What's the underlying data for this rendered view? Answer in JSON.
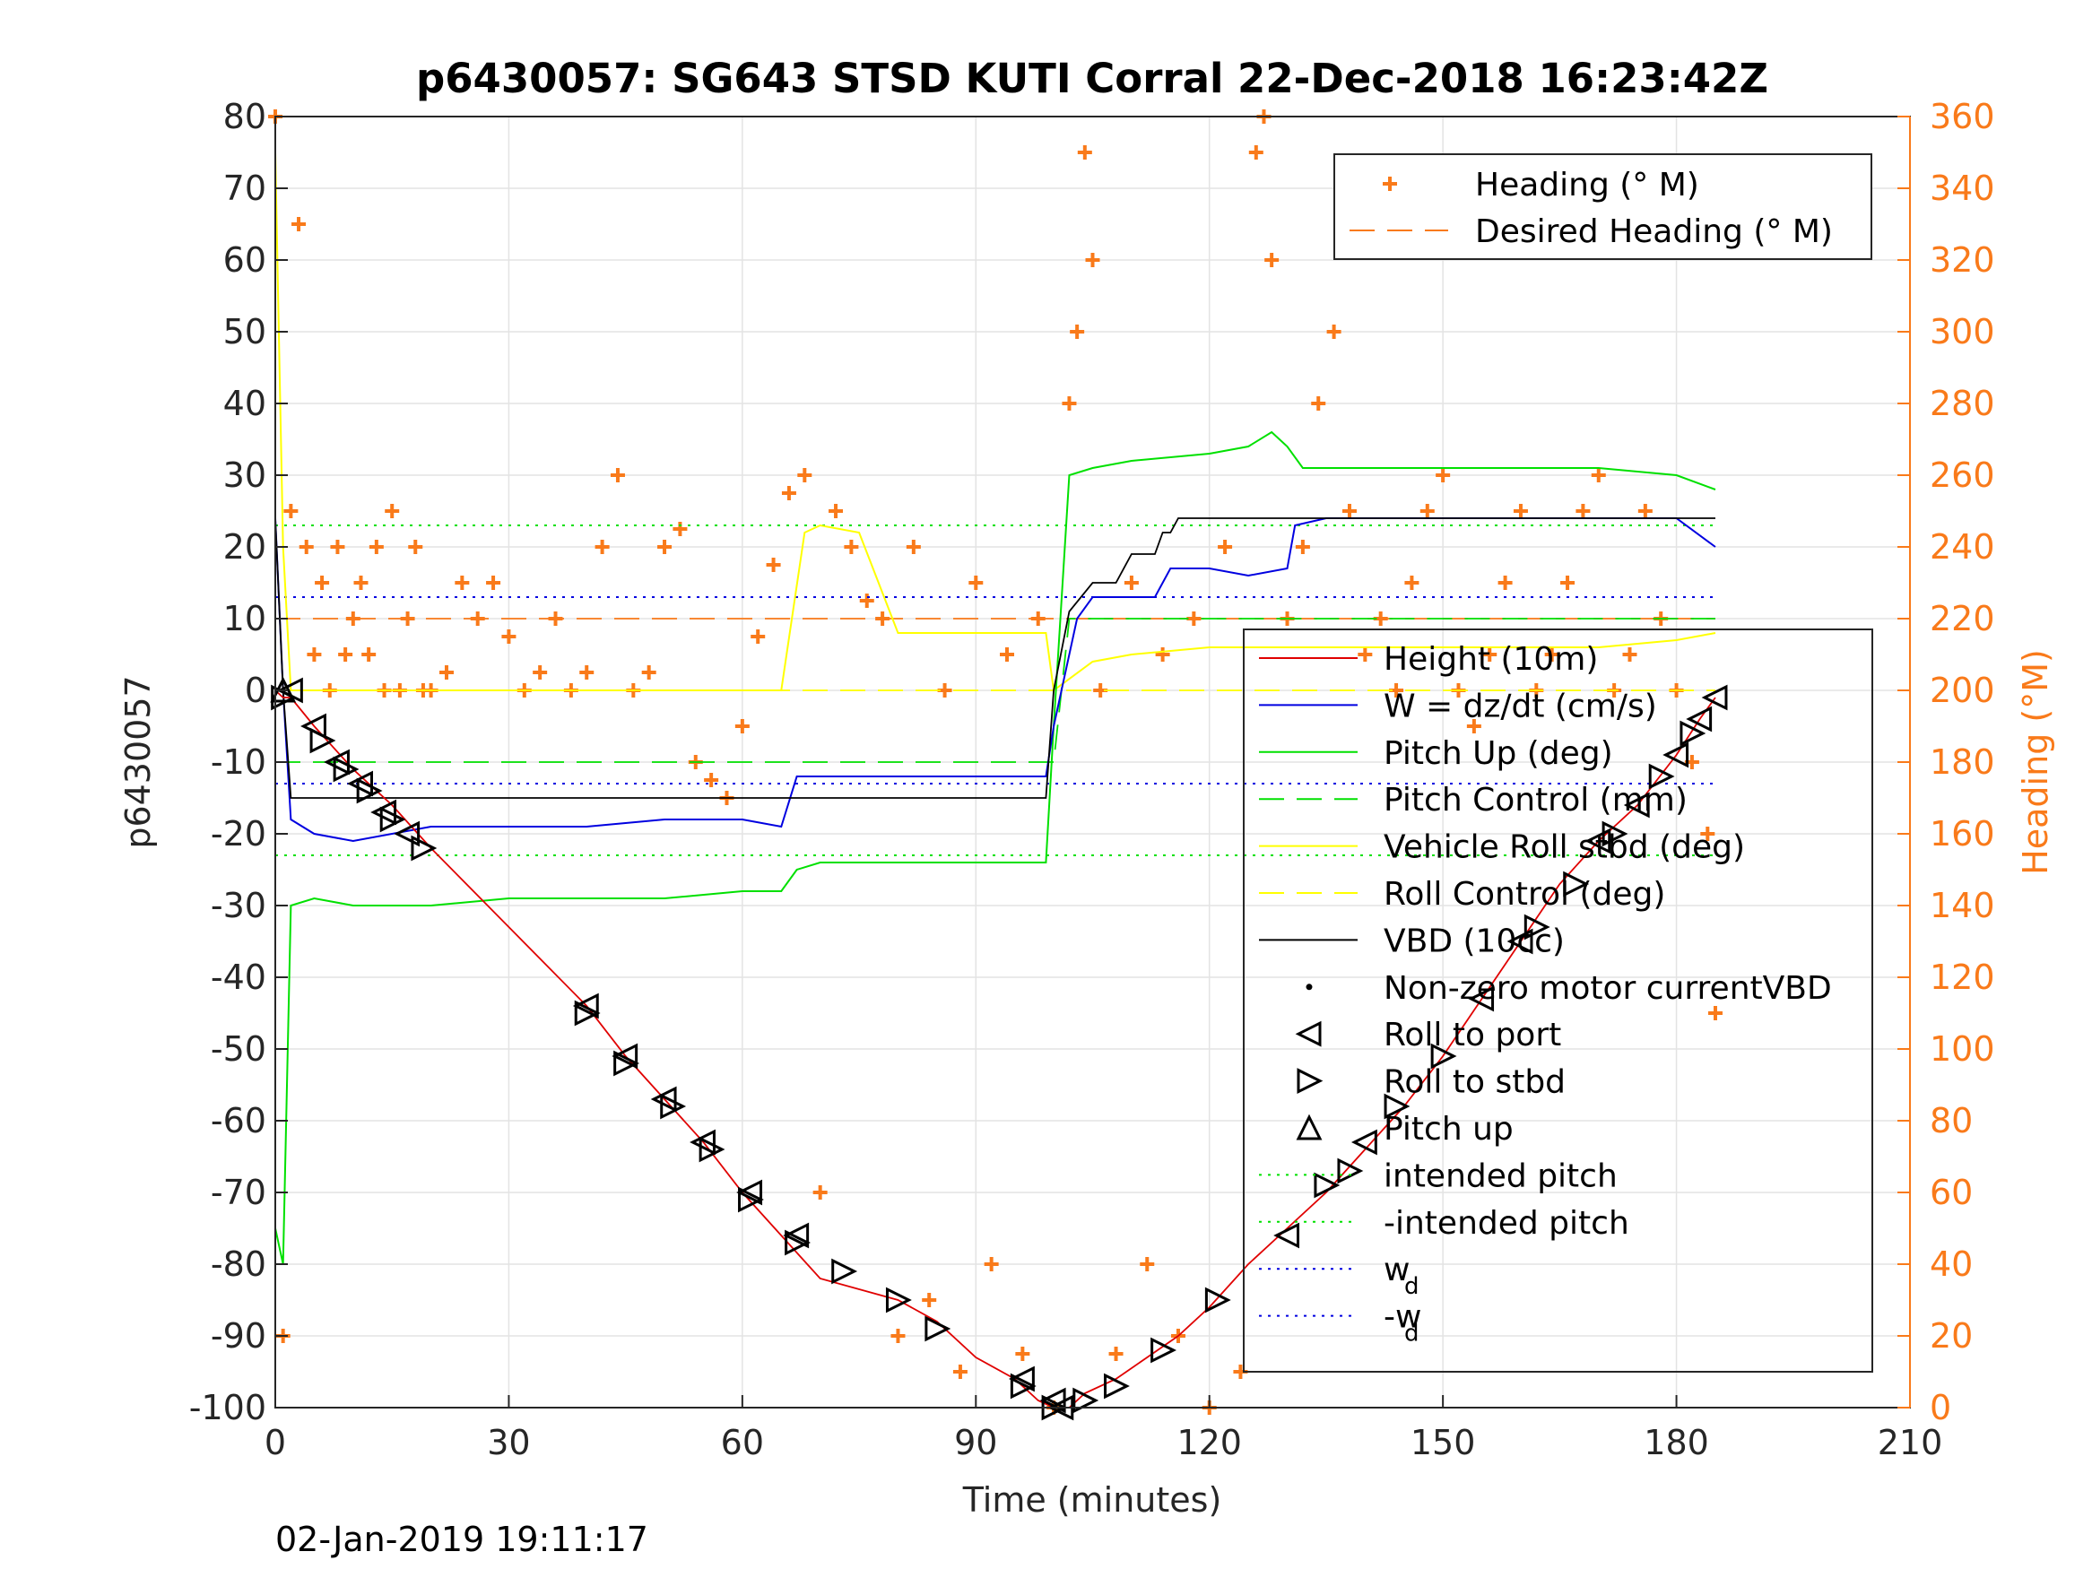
{
  "chart_data": {
    "type": "line",
    "title": "p6430057: SG643 STSD KUTI Corral 22-Dec-2018 16:23:42Z",
    "xlabel": "Time (minutes)",
    "ylabel": "p6430057",
    "ylabel_right": "Heading (°M)",
    "footer": "02-Jan-2019 19:11:17",
    "xlim": [
      0,
      210
    ],
    "ylim": [
      -100,
      80
    ],
    "ylim_right": [
      0,
      360
    ],
    "xticks": [
      "0",
      "30",
      "60",
      "90",
      "120",
      "150",
      "180",
      "210"
    ],
    "yticks": [
      "80",
      "70",
      "60",
      "50",
      "40",
      "30",
      "20",
      "10",
      "0",
      "-10",
      "-20",
      "-30",
      "-40",
      "-50",
      "-60",
      "-70",
      "-80",
      "-90",
      "-100"
    ],
    "yticks_right": [
      "360",
      "340",
      "320",
      "300",
      "280",
      "260",
      "240",
      "220",
      "200",
      "180",
      "160",
      "140",
      "120",
      "100",
      "80",
      "60",
      "40",
      "20",
      "0"
    ],
    "grid": true,
    "colors": {
      "heading": "#f97a1a",
      "height": "#e00000",
      "w": "#0000e0",
      "pitch": "#00e000",
      "roll": "#ffff00",
      "vbd": "#000000",
      "markers": "#000000"
    },
    "legend_top": {
      "placement": "top-right",
      "entries": [
        "Heading (° M)",
        "Desired Heading (° M)"
      ]
    },
    "legend_main": {
      "placement": "right",
      "entries": [
        "Height (10m)",
        "W = dz/dt (cm/s)",
        "Pitch Up (deg)",
        "Pitch Control (mm)",
        "Vehicle Roll stbd (deg)",
        "Roll Control (deg)",
        "VBD (10cc)",
        "Non-zero motor currentVBD",
        "Roll to port",
        "Roll to stbd",
        "Pitch up",
        "intended pitch",
        "-intended pitch",
        "w",
        "-w"
      ],
      "subscript": "d"
    },
    "series": [
      {
        "name": "Height (10m)",
        "axis": "left",
        "x": [
          0,
          1,
          2,
          5,
          10,
          15,
          20,
          40,
          45,
          50,
          55,
          60,
          65,
          70,
          80,
          85,
          90,
          95,
          98,
          100,
          102,
          104,
          108,
          112,
          116,
          120,
          125,
          130,
          135,
          140,
          145,
          150,
          155,
          160,
          165,
          170,
          175,
          180,
          183,
          185
        ],
        "y": [
          0,
          -1,
          -1,
          -5,
          -11,
          -16,
          -22,
          -44,
          -51,
          -57,
          -63,
          -70,
          -76,
          -82,
          -85,
          -88,
          -93,
          -96,
          -99,
          -100,
          -100,
          -98,
          -96,
          -93,
          -90,
          -86,
          -80,
          -75,
          -70,
          -64,
          -58,
          -51,
          -43,
          -35,
          -27,
          -21,
          -16,
          -9,
          -4,
          -1
        ]
      },
      {
        "name": "W = dz/dt (cm/s)",
        "axis": "left",
        "x": [
          0,
          1,
          2,
          5,
          10,
          20,
          30,
          40,
          50,
          60,
          65,
          67,
          70,
          80,
          90,
          99,
          100,
          101,
          103,
          105,
          110,
          113,
          115,
          120,
          125,
          130,
          131,
          135,
          140,
          150,
          160,
          170,
          175,
          180,
          185
        ],
        "y": [
          24,
          0,
          -18,
          -20,
          -21,
          -19,
          -19,
          -19,
          -18,
          -18,
          -19,
          -12,
          -12,
          -12,
          -12,
          -12,
          -5,
          0,
          10,
          13,
          13,
          13,
          17,
          17,
          16,
          17,
          23,
          24,
          24,
          24,
          24,
          24,
          24,
          24,
          20
        ]
      },
      {
        "name": "Pitch Up (deg)",
        "axis": "left",
        "x": [
          0,
          1,
          2,
          5,
          10,
          20,
          30,
          40,
          50,
          60,
          65,
          67,
          70,
          80,
          90,
          99,
          100,
          102,
          105,
          110,
          120,
          125,
          128,
          130,
          132,
          140,
          150,
          160,
          170,
          180,
          185
        ],
        "y": [
          -75,
          -80,
          -30,
          -29,
          -30,
          -30,
          -29,
          -29,
          -29,
          -28,
          -28,
          -25,
          -24,
          -24,
          -24,
          -24,
          -5,
          30,
          31,
          32,
          33,
          34,
          36,
          34,
          31,
          31,
          31,
          31,
          31,
          30,
          28
        ]
      },
      {
        "name": "Pitch Control (mm)",
        "axis": "left",
        "x": [
          0,
          2,
          20,
          40,
          60,
          80,
          100,
          102,
          140,
          185
        ],
        "y": [
          -10,
          -10,
          -10,
          -10,
          -10,
          -10,
          -10,
          10,
          10,
          10
        ]
      },
      {
        "name": "Vehicle Roll stbd (deg)",
        "axis": "left",
        "x": [
          0,
          1,
          2,
          5,
          10,
          20,
          30,
          40,
          50,
          60,
          65,
          68,
          70,
          75,
          80,
          90,
          99,
          100,
          105,
          110,
          120,
          125,
          130,
          140,
          150,
          160,
          170,
          180,
          185
        ],
        "y": [
          75,
          20,
          0,
          0,
          0,
          0,
          0,
          0,
          0,
          0,
          0,
          22,
          23,
          22,
          8,
          8,
          8,
          0,
          4,
          5,
          6,
          6,
          6,
          6,
          6,
          6,
          6,
          7,
          8
        ]
      },
      {
        "name": "Roll Control (deg)",
        "axis": "left",
        "x": [
          0,
          5,
          20,
          40,
          60,
          80,
          100,
          120,
          140,
          160,
          185
        ],
        "y": [
          0,
          0,
          0,
          0,
          0,
          0,
          0,
          0,
          0,
          0,
          0
        ]
      },
      {
        "name": "VBD (10cc)",
        "axis": "left",
        "x": [
          0,
          1,
          2,
          20,
          40,
          60,
          80,
          99,
          100,
          102,
          105,
          108,
          110,
          113,
          114,
          115,
          116,
          120,
          130,
          150,
          170,
          185
        ],
        "y": [
          24,
          0,
          -15,
          -15,
          -15,
          -15,
          -15,
          -15,
          0,
          11,
          15,
          15,
          19,
          19,
          22,
          22,
          24,
          24,
          24,
          24,
          24,
          24
        ]
      },
      {
        "name": "intended pitch",
        "axis": "left",
        "x": [
          0,
          185
        ],
        "y": [
          23,
          23
        ]
      },
      {
        "name": "-intended pitch",
        "axis": "left",
        "x": [
          0,
          185
        ],
        "y": [
          -23,
          -23
        ]
      },
      {
        "name": "w_d",
        "axis": "left",
        "x": [
          0,
          185
        ],
        "y": [
          13,
          13
        ]
      },
      {
        "name": "-w_d",
        "axis": "left",
        "x": [
          0,
          185
        ],
        "y": [
          -13,
          -13
        ]
      },
      {
        "name": "Desired Heading (° M)",
        "axis": "right",
        "x": [
          0,
          185
        ],
        "y": [
          220,
          220
        ]
      },
      {
        "name": "Heading (° M)",
        "axis": "right",
        "x": [
          0,
          1,
          2,
          3,
          4,
          5,
          6,
          7,
          8,
          9,
          10,
          11,
          12,
          13,
          14,
          15,
          16,
          17,
          18,
          19,
          20,
          22,
          24,
          26,
          28,
          30,
          32,
          34,
          36,
          38,
          40,
          42,
          44,
          46,
          48,
          50,
          52,
          54,
          56,
          58,
          60,
          62,
          64,
          66,
          68,
          70,
          72,
          74,
          76,
          78,
          80,
          82,
          84,
          86,
          88,
          90,
          92,
          94,
          96,
          98,
          100,
          102,
          103,
          104,
          105,
          106,
          108,
          110,
          112,
          114,
          116,
          118,
          120,
          122,
          124,
          126,
          127,
          128,
          130,
          132,
          134,
          136,
          138,
          140,
          142,
          144,
          146,
          148,
          150,
          152,
          154,
          156,
          158,
          160,
          162,
          164,
          166,
          168,
          170,
          172,
          174,
          176,
          178,
          180,
          182,
          184,
          185
        ],
        "y": [
          360,
          20,
          250,
          330,
          240,
          210,
          230,
          200,
          240,
          210,
          220,
          230,
          210,
          240,
          200,
          250,
          200,
          220,
          240,
          200,
          200,
          205,
          230,
          220,
          230,
          215,
          200,
          205,
          220,
          200,
          205,
          240,
          260,
          200,
          205,
          240,
          245,
          180,
          175,
          170,
          190,
          215,
          235,
          255,
          260,
          60,
          250,
          240,
          225,
          220,
          20,
          240,
          30,
          200,
          10,
          230,
          40,
          210,
          15,
          220,
          0,
          280,
          300,
          350,
          320,
          200,
          15,
          230,
          40,
          210,
          20,
          220,
          0,
          240,
          10,
          350,
          360,
          320,
          220,
          240,
          280,
          300,
          250,
          210,
          220,
          200,
          230,
          250,
          260,
          200,
          190,
          210,
          230,
          250,
          200,
          210,
          230,
          250,
          260,
          200,
          210,
          250,
          220,
          200,
          180,
          160,
          110
        ]
      }
    ],
    "markers": {
      "roll_to_port": {
        "x": [
          2,
          5,
          8,
          11,
          14,
          17,
          40,
          45,
          50,
          55,
          61,
          67,
          96,
          100,
          101,
          130,
          140,
          155,
          160,
          170,
          175,
          180,
          183,
          185
        ],
        "y": [
          0,
          -5,
          -10,
          -13,
          -17,
          -20,
          -44,
          -51,
          -57,
          -63,
          -70,
          -76,
          -96,
          -99,
          -100,
          -76,
          -63,
          -43,
          -35,
          -21,
          -16,
          -9,
          -4,
          -1
        ]
      },
      "roll_to_stbd": {
        "x": [
          1,
          6,
          9,
          12,
          15,
          19,
          40,
          45,
          51,
          56,
          61,
          67,
          73,
          80,
          85,
          96,
          100,
          104,
          108,
          114,
          121,
          135,
          138,
          144,
          150,
          162,
          167,
          172,
          178,
          182
        ],
        "y": [
          -1,
          -7,
          -11,
          -14,
          -18,
          -22,
          -45,
          -52,
          -58,
          -64,
          -71,
          -77,
          -81,
          -85,
          -89,
          -97,
          -100,
          -99,
          -97,
          -92,
          -85,
          -69,
          -67,
          -58,
          -51,
          -33,
          -27,
          -20,
          -12,
          -6
        ]
      },
      "pitch_up": {
        "x": [
          1
        ],
        "y": [
          0
        ]
      }
    }
  }
}
